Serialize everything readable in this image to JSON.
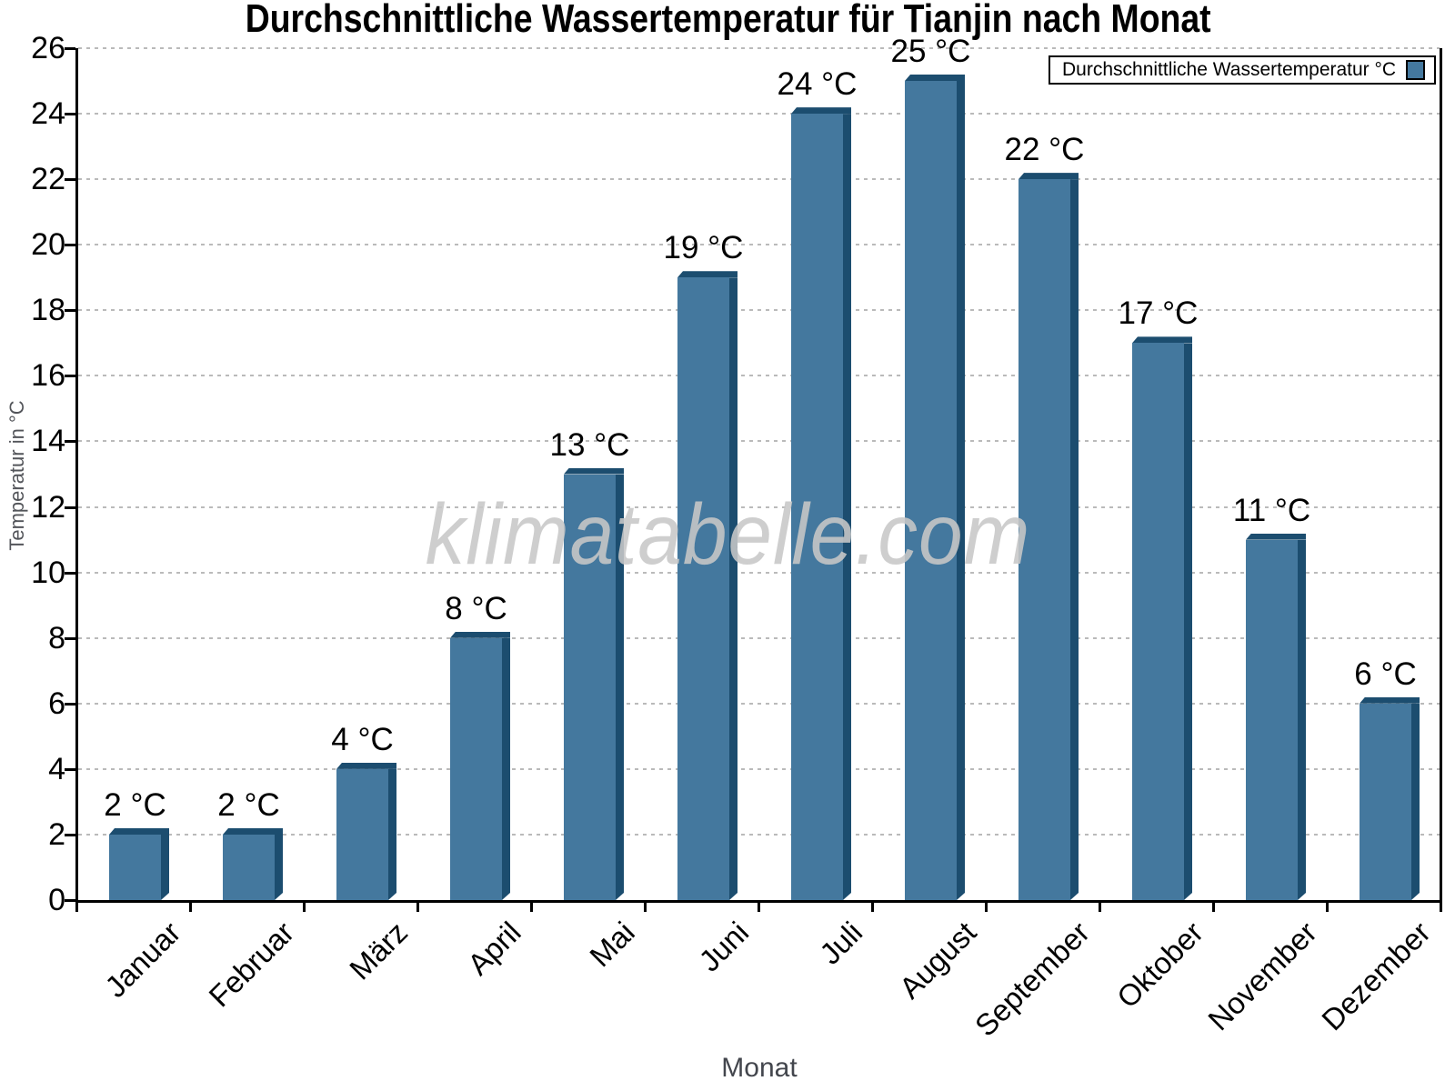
{
  "title": "Durchschnittliche Wassertemperatur für Tianjin nach Monat",
  "watermark": "klimatabelle.com",
  "legend": {
    "label": "Durchschnittliche Wassertemperatur °C"
  },
  "colors": {
    "bar_face": "#44789E",
    "bar_shadow": "#1C4D6F",
    "gridline": "#BABABA",
    "axis": "#000000",
    "axis_title_gray": "#53555A",
    "watermark_gray": "#C8C8C8"
  },
  "chart_data": {
    "type": "bar",
    "title": "Durchschnittliche Wassertemperatur für Tianjin nach Monat",
    "xlabel": "Monat",
    "ylabel": "Temperatur in °C",
    "categories": [
      "Januar",
      "Februar",
      "März",
      "April",
      "Mai",
      "Juni",
      "Juli",
      "August",
      "September",
      "Oktober",
      "November",
      "Dezember"
    ],
    "values": [
      2,
      2,
      4,
      8,
      13,
      19,
      24,
      25,
      22,
      17,
      11,
      6
    ],
    "bar_labels": [
      "2 °C",
      "2 °C",
      "4 °C",
      "8 °C",
      "13 °C",
      "19 °C",
      "24 °C",
      "25 °C",
      "22 °C",
      "17 °C",
      "11 °C",
      "6 °C"
    ],
    "series": [
      {
        "name": "Durchschnittliche Wassertemperatur °C",
        "values": [
          2,
          2,
          4,
          8,
          13,
          19,
          24,
          25,
          22,
          17,
          11,
          6
        ]
      }
    ],
    "ylim": [
      0,
      26
    ],
    "ytick_step": 2,
    "grid": "horizontal-dotted",
    "legend_position": "top-right"
  }
}
